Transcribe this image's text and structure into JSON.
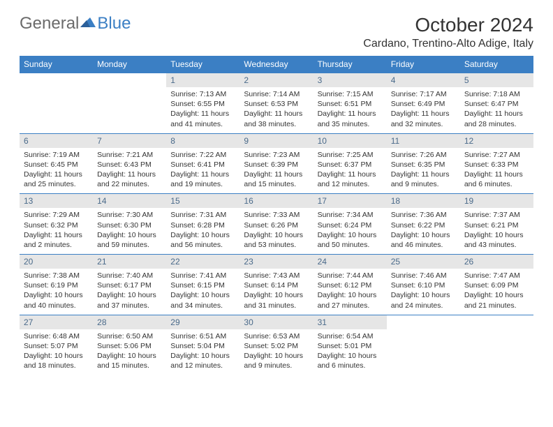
{
  "logo": {
    "text1": "General",
    "text2": "Blue"
  },
  "title": "October 2024",
  "location": "Cardano, Trentino-Alto Adige, Italy",
  "colors": {
    "header_bg": "#3b7fc4",
    "header_text": "#ffffff",
    "daynum_bg": "#e6e6e6",
    "daynum_text": "#4a6a8a",
    "body_text": "#333333",
    "logo_gray": "#6b6b6b",
    "logo_blue": "#3b7fc4",
    "row_border": "#3b7fc4"
  },
  "day_names": [
    "Sunday",
    "Monday",
    "Tuesday",
    "Wednesday",
    "Thursday",
    "Friday",
    "Saturday"
  ],
  "weeks": [
    [
      {
        "n": "",
        "sr": "",
        "ss": "",
        "dl": ""
      },
      {
        "n": "",
        "sr": "",
        "ss": "",
        "dl": ""
      },
      {
        "n": "1",
        "sr": "Sunrise: 7:13 AM",
        "ss": "Sunset: 6:55 PM",
        "dl": "Daylight: 11 hours and 41 minutes."
      },
      {
        "n": "2",
        "sr": "Sunrise: 7:14 AM",
        "ss": "Sunset: 6:53 PM",
        "dl": "Daylight: 11 hours and 38 minutes."
      },
      {
        "n": "3",
        "sr": "Sunrise: 7:15 AM",
        "ss": "Sunset: 6:51 PM",
        "dl": "Daylight: 11 hours and 35 minutes."
      },
      {
        "n": "4",
        "sr": "Sunrise: 7:17 AM",
        "ss": "Sunset: 6:49 PM",
        "dl": "Daylight: 11 hours and 32 minutes."
      },
      {
        "n": "5",
        "sr": "Sunrise: 7:18 AM",
        "ss": "Sunset: 6:47 PM",
        "dl": "Daylight: 11 hours and 28 minutes."
      }
    ],
    [
      {
        "n": "6",
        "sr": "Sunrise: 7:19 AM",
        "ss": "Sunset: 6:45 PM",
        "dl": "Daylight: 11 hours and 25 minutes."
      },
      {
        "n": "7",
        "sr": "Sunrise: 7:21 AM",
        "ss": "Sunset: 6:43 PM",
        "dl": "Daylight: 11 hours and 22 minutes."
      },
      {
        "n": "8",
        "sr": "Sunrise: 7:22 AM",
        "ss": "Sunset: 6:41 PM",
        "dl": "Daylight: 11 hours and 19 minutes."
      },
      {
        "n": "9",
        "sr": "Sunrise: 7:23 AM",
        "ss": "Sunset: 6:39 PM",
        "dl": "Daylight: 11 hours and 15 minutes."
      },
      {
        "n": "10",
        "sr": "Sunrise: 7:25 AM",
        "ss": "Sunset: 6:37 PM",
        "dl": "Daylight: 11 hours and 12 minutes."
      },
      {
        "n": "11",
        "sr": "Sunrise: 7:26 AM",
        "ss": "Sunset: 6:35 PM",
        "dl": "Daylight: 11 hours and 9 minutes."
      },
      {
        "n": "12",
        "sr": "Sunrise: 7:27 AM",
        "ss": "Sunset: 6:33 PM",
        "dl": "Daylight: 11 hours and 6 minutes."
      }
    ],
    [
      {
        "n": "13",
        "sr": "Sunrise: 7:29 AM",
        "ss": "Sunset: 6:32 PM",
        "dl": "Daylight: 11 hours and 2 minutes."
      },
      {
        "n": "14",
        "sr": "Sunrise: 7:30 AM",
        "ss": "Sunset: 6:30 PM",
        "dl": "Daylight: 10 hours and 59 minutes."
      },
      {
        "n": "15",
        "sr": "Sunrise: 7:31 AM",
        "ss": "Sunset: 6:28 PM",
        "dl": "Daylight: 10 hours and 56 minutes."
      },
      {
        "n": "16",
        "sr": "Sunrise: 7:33 AM",
        "ss": "Sunset: 6:26 PM",
        "dl": "Daylight: 10 hours and 53 minutes."
      },
      {
        "n": "17",
        "sr": "Sunrise: 7:34 AM",
        "ss": "Sunset: 6:24 PM",
        "dl": "Daylight: 10 hours and 50 minutes."
      },
      {
        "n": "18",
        "sr": "Sunrise: 7:36 AM",
        "ss": "Sunset: 6:22 PM",
        "dl": "Daylight: 10 hours and 46 minutes."
      },
      {
        "n": "19",
        "sr": "Sunrise: 7:37 AM",
        "ss": "Sunset: 6:21 PM",
        "dl": "Daylight: 10 hours and 43 minutes."
      }
    ],
    [
      {
        "n": "20",
        "sr": "Sunrise: 7:38 AM",
        "ss": "Sunset: 6:19 PM",
        "dl": "Daylight: 10 hours and 40 minutes."
      },
      {
        "n": "21",
        "sr": "Sunrise: 7:40 AM",
        "ss": "Sunset: 6:17 PM",
        "dl": "Daylight: 10 hours and 37 minutes."
      },
      {
        "n": "22",
        "sr": "Sunrise: 7:41 AM",
        "ss": "Sunset: 6:15 PM",
        "dl": "Daylight: 10 hours and 34 minutes."
      },
      {
        "n": "23",
        "sr": "Sunrise: 7:43 AM",
        "ss": "Sunset: 6:14 PM",
        "dl": "Daylight: 10 hours and 31 minutes."
      },
      {
        "n": "24",
        "sr": "Sunrise: 7:44 AM",
        "ss": "Sunset: 6:12 PM",
        "dl": "Daylight: 10 hours and 27 minutes."
      },
      {
        "n": "25",
        "sr": "Sunrise: 7:46 AM",
        "ss": "Sunset: 6:10 PM",
        "dl": "Daylight: 10 hours and 24 minutes."
      },
      {
        "n": "26",
        "sr": "Sunrise: 7:47 AM",
        "ss": "Sunset: 6:09 PM",
        "dl": "Daylight: 10 hours and 21 minutes."
      }
    ],
    [
      {
        "n": "27",
        "sr": "Sunrise: 6:48 AM",
        "ss": "Sunset: 5:07 PM",
        "dl": "Daylight: 10 hours and 18 minutes."
      },
      {
        "n": "28",
        "sr": "Sunrise: 6:50 AM",
        "ss": "Sunset: 5:06 PM",
        "dl": "Daylight: 10 hours and 15 minutes."
      },
      {
        "n": "29",
        "sr": "Sunrise: 6:51 AM",
        "ss": "Sunset: 5:04 PM",
        "dl": "Daylight: 10 hours and 12 minutes."
      },
      {
        "n": "30",
        "sr": "Sunrise: 6:53 AM",
        "ss": "Sunset: 5:02 PM",
        "dl": "Daylight: 10 hours and 9 minutes."
      },
      {
        "n": "31",
        "sr": "Sunrise: 6:54 AM",
        "ss": "Sunset: 5:01 PM",
        "dl": "Daylight: 10 hours and 6 minutes."
      },
      {
        "n": "",
        "sr": "",
        "ss": "",
        "dl": ""
      },
      {
        "n": "",
        "sr": "",
        "ss": "",
        "dl": ""
      }
    ]
  ]
}
